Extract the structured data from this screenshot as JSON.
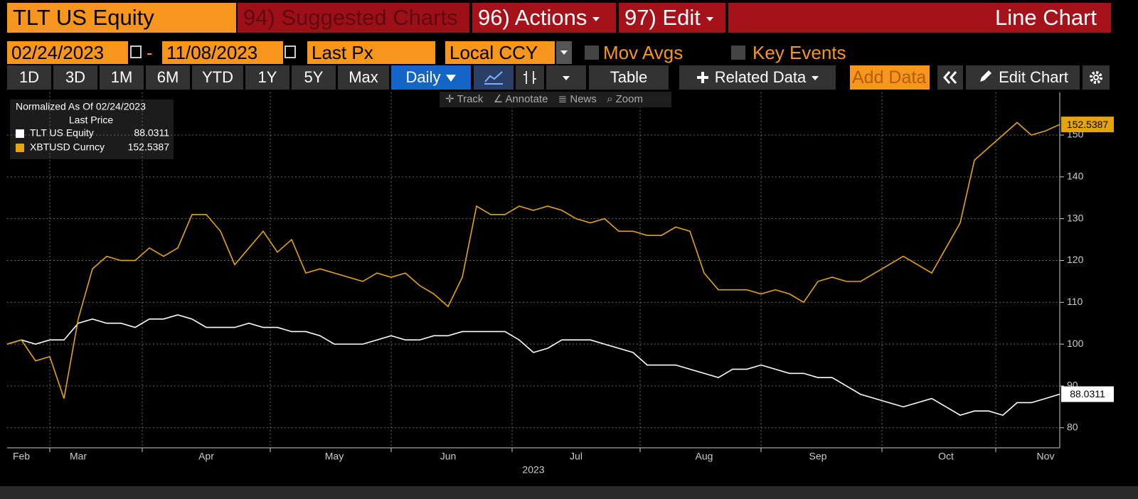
{
  "header": {
    "ticker": "TLT US Equity",
    "menus": [
      "94) Suggested Charts",
      "96) Actions",
      "97) Edit"
    ],
    "chart_kind": "Line Chart"
  },
  "controls": {
    "start_date": "02/24/2023",
    "separator": "-",
    "end_date": "11/08/2023",
    "field": "Last Px",
    "currency": "Local CCY",
    "options": [
      "Mov Avgs",
      "Key Events"
    ]
  },
  "toolbar": {
    "periods": [
      "1D",
      "3D",
      "1M",
      "6M",
      "YTD",
      "1Y",
      "5Y",
      "Max"
    ],
    "frequency": "Daily",
    "table": "Table",
    "related": "Related Data",
    "add_data": "Add Data",
    "edit_chart": "Edit Chart"
  },
  "chart_tools": [
    "Track",
    "Annotate",
    "News",
    "Zoom"
  ],
  "chart_data": {
    "type": "line",
    "title": "Normalized As Of 02/24/2023",
    "subtitle": "Last Price",
    "xlabel": "2023",
    "categories": [
      null,
      "Feb",
      null,
      null,
      null,
      "Mar",
      null,
      null,
      null,
      null,
      null,
      null,
      null,
      null,
      "Apr",
      null,
      null,
      null,
      null,
      null,
      null,
      null,
      null,
      "May",
      null,
      null,
      null,
      null,
      null,
      null,
      null,
      "Jun",
      null,
      null,
      null,
      null,
      null,
      null,
      null,
      null,
      "Jul",
      null,
      null,
      null,
      null,
      null,
      null,
      null,
      null,
      "Aug",
      null,
      null,
      null,
      null,
      null,
      null,
      null,
      "Sep",
      null,
      null,
      null,
      null,
      null,
      null,
      null,
      null,
      "Oct",
      null,
      null,
      null,
      null,
      null,
      null,
      "Nov",
      null
    ],
    "series": [
      {
        "name": "TLT US Equity",
        "color": "#ffffff",
        "values": [
          100,
          101,
          100,
          101,
          101,
          105,
          106,
          105,
          105,
          104,
          106,
          106,
          107,
          106,
          104,
          104,
          104,
          105,
          104,
          104,
          103,
          103,
          102,
          100,
          100,
          100,
          101,
          102,
          101,
          101,
          102,
          102,
          103,
          103,
          103,
          103,
          101,
          98,
          99,
          101,
          101,
          101,
          100,
          99,
          98,
          95,
          95,
          95,
          94,
          93,
          92,
          94,
          94,
          95,
          94,
          93,
          93,
          92,
          92,
          90,
          88,
          87,
          86,
          85,
          86,
          87,
          85,
          83,
          84,
          84,
          83,
          86,
          86,
          87,
          88.0311
        ]
      },
      {
        "name": "XBTUSD Curncy",
        "color": "#e5a50a",
        "values": [
          100,
          101,
          96,
          97,
          87,
          106,
          118,
          121,
          120,
          120,
          123,
          121,
          123,
          131,
          131,
          127,
          119,
          123,
          127,
          122,
          125,
          117,
          118,
          117,
          116,
          115,
          117,
          116,
          117,
          114,
          112,
          109,
          116,
          133,
          131,
          131,
          133,
          132,
          133,
          132,
          130,
          129,
          130,
          127,
          127,
          126,
          126,
          128,
          127,
          117,
          113,
          113,
          113,
          112,
          113,
          112,
          110,
          115,
          116,
          115,
          115,
          117,
          119,
          121,
          119,
          117,
          123,
          129,
          144,
          147,
          150,
          153,
          150,
          151,
          152.5387
        ]
      }
    ],
    "ylim": [
      75.2,
      160.2
    ],
    "yticks": [
      80,
      90,
      100,
      110,
      120,
      130,
      140,
      150
    ],
    "grid": true
  }
}
